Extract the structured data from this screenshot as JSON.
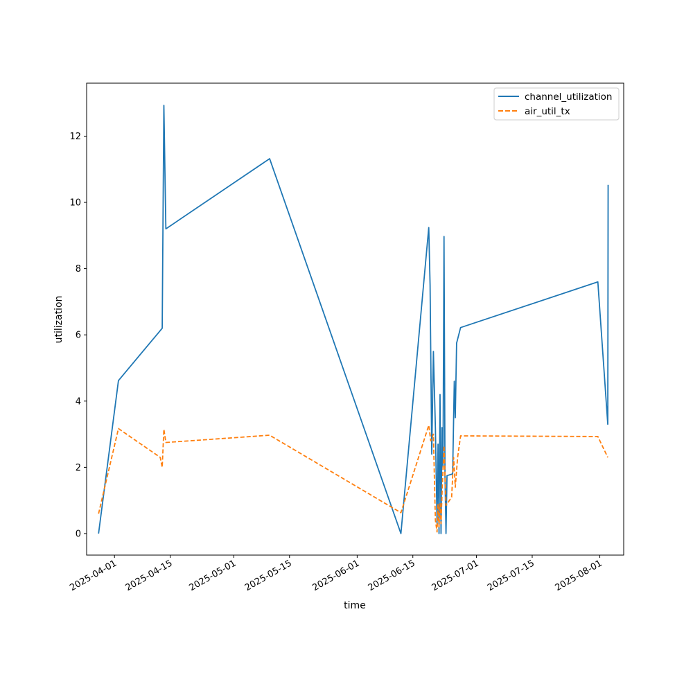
{
  "chart_data": {
    "type": "line",
    "title": "",
    "xlabel": "time",
    "ylabel": "utilization",
    "xlim": [
      "2025-03-25",
      "2025-08-07"
    ],
    "ylim": [
      -0.65,
      13.6
    ],
    "x_ticks": [
      "2025-04-01",
      "2025-04-15",
      "2025-05-01",
      "2025-05-15",
      "2025-06-01",
      "2025-06-15",
      "2025-07-01",
      "2025-07-15",
      "2025-08-01"
    ],
    "y_ticks": [
      0,
      2,
      4,
      6,
      8,
      10,
      12
    ],
    "grid": false,
    "legend_position": "top-right",
    "series": [
      {
        "name": "channel_utilization",
        "color": "#1f77b4",
        "style": "solid",
        "points": [
          [
            "2025-03-28T00:00",
            0.0
          ],
          [
            "2025-04-02T00:00",
            4.62
          ],
          [
            "2025-04-13T00:00",
            6.2
          ],
          [
            "2025-04-13T10:00",
            12.93
          ],
          [
            "2025-04-13T22:00",
            9.2
          ],
          [
            "2025-05-10T00:00",
            11.32
          ],
          [
            "2025-06-12T00:00",
            0.0
          ],
          [
            "2025-06-19T00:00",
            9.24
          ],
          [
            "2025-06-19T08:00",
            7.5
          ],
          [
            "2025-06-19T18:00",
            2.4
          ],
          [
            "2025-06-20T04:00",
            5.5
          ],
          [
            "2025-06-20T16:00",
            3.2
          ],
          [
            "2025-06-21T02:00",
            0.3
          ],
          [
            "2025-06-21T08:00",
            2.7
          ],
          [
            "2025-06-21T14:00",
            0.0
          ],
          [
            "2025-06-21T20:00",
            4.2
          ],
          [
            "2025-06-22T02:00",
            0.0
          ],
          [
            "2025-06-22T08:00",
            3.2
          ],
          [
            "2025-06-22T14:00",
            2.0
          ],
          [
            "2025-06-22T20:00",
            8.97
          ],
          [
            "2025-06-23T02:00",
            1.7
          ],
          [
            "2025-06-23T08:00",
            0.0
          ],
          [
            "2025-06-23T14:00",
            1.75
          ],
          [
            "2025-06-25T00:00",
            1.8
          ],
          [
            "2025-06-25T10:00",
            4.6
          ],
          [
            "2025-06-25T16:00",
            3.5
          ],
          [
            "2025-06-26T00:00",
            5.75
          ],
          [
            "2025-06-27T00:00",
            6.22
          ],
          [
            "2025-07-31T12:00",
            7.6
          ],
          [
            "2025-08-03T00:00",
            3.3
          ],
          [
            "2025-08-03T02:00",
            10.53
          ]
        ]
      },
      {
        "name": "air_util_tx",
        "color": "#ff7f0e",
        "style": "dashed",
        "points": [
          [
            "2025-03-28T00:00",
            0.6
          ],
          [
            "2025-04-02T00:00",
            3.17
          ],
          [
            "2025-04-12T12:00",
            2.3
          ],
          [
            "2025-04-13T00:00",
            2.0
          ],
          [
            "2025-04-13T10:00",
            3.15
          ],
          [
            "2025-04-13T22:00",
            2.75
          ],
          [
            "2025-05-10T00:00",
            2.97
          ],
          [
            "2025-06-12T00:00",
            0.63
          ],
          [
            "2025-06-19T00:00",
            3.27
          ],
          [
            "2025-06-19T12:00",
            2.8
          ],
          [
            "2025-06-20T04:00",
            3.0
          ],
          [
            "2025-06-20T16:00",
            0.4
          ],
          [
            "2025-06-21T02:00",
            0.05
          ],
          [
            "2025-06-21T08:00",
            0.9
          ],
          [
            "2025-06-21T14:00",
            0.2
          ],
          [
            "2025-06-21T20:00",
            0.9
          ],
          [
            "2025-06-22T02:00",
            0.3
          ],
          [
            "2025-06-22T08:00",
            1.2
          ],
          [
            "2025-06-22T20:00",
            2.65
          ],
          [
            "2025-06-23T08:00",
            0.85
          ],
          [
            "2025-06-24T18:00",
            1.1
          ],
          [
            "2025-06-25T06:00",
            2.3
          ],
          [
            "2025-06-25T16:00",
            1.4
          ],
          [
            "2025-06-26T06:00",
            2.3
          ],
          [
            "2025-06-27T00:00",
            2.95
          ],
          [
            "2025-07-31T12:00",
            2.93
          ],
          [
            "2025-08-03T00:00",
            2.3
          ]
        ]
      }
    ]
  }
}
